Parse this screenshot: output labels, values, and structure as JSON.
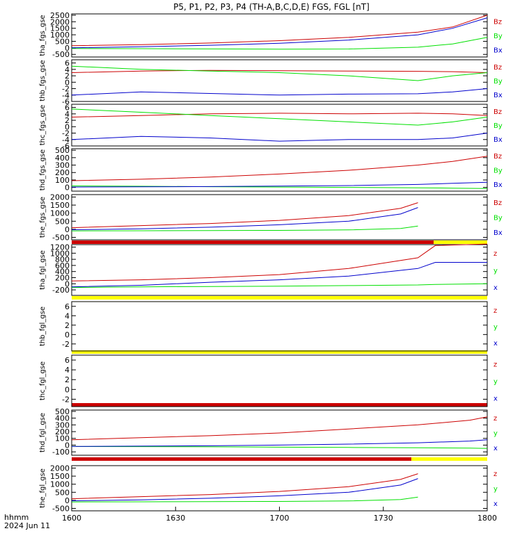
{
  "title": "P5, P1, P2, P3, P4 (TH-A,B,C,D,E) FGS, FGL [nT]",
  "colors": {
    "red": "#cc0000",
    "green": "#00e000",
    "blue": "#0000cc",
    "yellow": "#ffff00",
    "black": "#000000"
  },
  "x_axis": {
    "label_line1": "hhmm",
    "label_line2": "2024 Jun 11",
    "ticks": [
      "1600",
      "1630",
      "1700",
      "1730",
      "1800"
    ]
  },
  "chart_data": [
    {
      "type": "line",
      "ylabel": "tha_fgs_gse",
      "ylim": [
        -700,
        2600
      ],
      "yticks": [
        "2500",
        "2000",
        "1500",
        "1000",
        "500",
        "0",
        "-500"
      ],
      "legend": [
        "Bz",
        "By",
        "Bx"
      ],
      "x": [
        "16:00",
        "16:20",
        "16:40",
        "17:00",
        "17:20",
        "17:40",
        "17:50",
        "18:00"
      ],
      "series": [
        {
          "name": "Bz",
          "values": [
            170,
            250,
            370,
            550,
            800,
            1200,
            1600,
            2500
          ]
        },
        {
          "name": "By",
          "values": [
            -50,
            -60,
            -80,
            -100,
            -90,
            50,
            300,
            800
          ]
        },
        {
          "name": "Bx",
          "values": [
            0,
            80,
            200,
            350,
            600,
            1000,
            1500,
            2300
          ]
        }
      ]
    },
    {
      "type": "line",
      "ylabel": "thb_fgs_gse",
      "ylim": [
        -6,
        7
      ],
      "yticks": [
        "6",
        "4",
        "2",
        "0",
        "-2",
        "-4",
        "-6"
      ],
      "legend": [
        "Bz",
        "By",
        "Bx"
      ],
      "x": [
        "16:00",
        "16:20",
        "16:40",
        "17:00",
        "17:20",
        "17:40",
        "17:50",
        "18:00"
      ],
      "series": [
        {
          "name": "Bz",
          "values": [
            3,
            3.5,
            3.7,
            3.6,
            3.5,
            3.4,
            3.3,
            3.0
          ]
        },
        {
          "name": "By",
          "values": [
            5,
            4,
            3.5,
            3,
            2,
            0.5,
            2,
            3
          ]
        },
        {
          "name": "Bx",
          "values": [
            -4,
            -3,
            -3.5,
            -4,
            -3.7,
            -3.6,
            -3,
            -2
          ]
        }
      ]
    },
    {
      "type": "line",
      "ylabel": "thc_fgs_gse",
      "ylim": [
        -6,
        7
      ],
      "yticks": [
        "6",
        "4",
        "2",
        "0",
        "-2",
        "-4",
        "-6"
      ],
      "legend": [
        "Bz",
        "By",
        "Bx"
      ],
      "x": [
        "16:00",
        "16:20",
        "16:40",
        "17:00",
        "17:20",
        "17:40",
        "17:50",
        "18:00"
      ],
      "series": [
        {
          "name": "Bz",
          "values": [
            3,
            3.5,
            4,
            4.2,
            4.0,
            4.2,
            4.0,
            3.5
          ]
        },
        {
          "name": "By",
          "values": [
            5.5,
            4.5,
            3.5,
            2.5,
            1.5,
            0.5,
            1.5,
            3
          ]
        },
        {
          "name": "Bx",
          "values": [
            -4,
            -3,
            -3.5,
            -4.5,
            -4,
            -4,
            -3.5,
            -2
          ]
        }
      ]
    },
    {
      "type": "line",
      "ylabel": "thd_fgs_gse",
      "ylim": [
        -50,
        520
      ],
      "yticks": [
        "500",
        "400",
        "300",
        "200",
        "100",
        "0"
      ],
      "legend": [
        "Bz",
        "By",
        "Bx"
      ],
      "x": [
        "16:00",
        "16:20",
        "16:40",
        "17:00",
        "17:20",
        "17:40",
        "17:50",
        "18:00"
      ],
      "series": [
        {
          "name": "Bz",
          "values": [
            90,
            110,
            140,
            180,
            230,
            300,
            350,
            420
          ]
        },
        {
          "name": "By",
          "values": [
            20,
            15,
            10,
            5,
            0,
            -5,
            -10,
            -15
          ]
        },
        {
          "name": "Bx",
          "values": [
            5,
            8,
            12,
            18,
            25,
            40,
            55,
            70
          ]
        }
      ]
    },
    {
      "type": "line",
      "ylabel": "the_fgs_gse",
      "ylim": [
        -650,
        2150
      ],
      "yticks": [
        "2000",
        "1500",
        "1000",
        "500",
        "0",
        "-500"
      ],
      "legend": [
        "Bz",
        "By",
        "Bx"
      ],
      "x": [
        "16:00",
        "16:20",
        "16:40",
        "17:00",
        "17:20",
        "17:35",
        "17:40"
      ],
      "series": [
        {
          "name": "Bz",
          "values": [
            100,
            230,
            360,
            550,
            850,
            1300,
            1650
          ]
        },
        {
          "name": "By",
          "values": [
            -100,
            -90,
            -80,
            -70,
            -40,
            50,
            200
          ]
        },
        {
          "name": "Bx",
          "values": [
            -30,
            30,
            130,
            280,
            500,
            950,
            1350
          ]
        }
      ]
    },
    {
      "type": "line",
      "ylabel": "tha_fgl_gse",
      "ylim": [
        -380,
        1280
      ],
      "yticks": [
        "1200",
        "1000",
        "800",
        "600",
        "400",
        "200",
        "0",
        "-200"
      ],
      "legend": [
        "z",
        "y",
        "x"
      ],
      "x": [
        "16:00",
        "16:20",
        "16:40",
        "17:00",
        "17:20",
        "17:40",
        "17:45",
        "18:00"
      ],
      "series": [
        {
          "name": "z",
          "values": [
            90,
            130,
            200,
            300,
            500,
            850,
            1250,
            1300
          ]
        },
        {
          "name": "y",
          "values": [
            -120,
            -100,
            -90,
            -80,
            -60,
            -40,
            -20,
            0
          ]
        },
        {
          "name": "x",
          "values": [
            -100,
            -50,
            50,
            130,
            250,
            500,
            700,
            700
          ]
        }
      ]
    },
    {
      "type": "line",
      "ylabel": "thb_fgl_gse",
      "ylim": [
        -3.5,
        7
      ],
      "yticks": [
        "6",
        "4",
        "2",
        "0",
        "-2"
      ],
      "legend": [
        "z",
        "y",
        "x"
      ],
      "x": [],
      "series": []
    },
    {
      "type": "line",
      "ylabel": "thc_fgl_gse",
      "ylim": [
        -3.5,
        7
      ],
      "yticks": [
        "6",
        "4",
        "2",
        "0",
        "-2"
      ],
      "legend": [
        "z",
        "y",
        "x"
      ],
      "x": [],
      "series": []
    },
    {
      "type": "line",
      "ylabel": "thd_fgl_gse",
      "ylim": [
        -150,
        520
      ],
      "yticks": [
        "500",
        "400",
        "300",
        "200",
        "100",
        "0",
        "-100"
      ],
      "legend": [
        "z",
        "y",
        "x"
      ],
      "x": [
        "16:00",
        "16:20",
        "16:40",
        "17:00",
        "17:20",
        "17:40",
        "17:55",
        "18:00"
      ],
      "series": [
        {
          "name": "z",
          "values": [
            80,
            110,
            140,
            180,
            240,
            300,
            370,
            420
          ]
        },
        {
          "name": "y",
          "values": [
            -20,
            -22,
            -25,
            -30,
            -35,
            -40,
            -45,
            -50
          ]
        },
        {
          "name": "x",
          "values": [
            -20,
            -15,
            -10,
            0,
            15,
            35,
            60,
            80
          ]
        }
      ]
    },
    {
      "type": "line",
      "ylabel": "the_fgl_gse",
      "ylim": [
        -650,
        2150
      ],
      "yticks": [
        "2000",
        "1500",
        "1000",
        "500",
        "0",
        "-500"
      ],
      "legend": [
        "z",
        "y",
        "x"
      ],
      "x": [
        "16:00",
        "16:20",
        "16:40",
        "17:00",
        "17:20",
        "17:35",
        "17:40"
      ],
      "series": [
        {
          "name": "z",
          "values": [
            100,
            230,
            360,
            550,
            850,
            1300,
            1650
          ]
        },
        {
          "name": "y",
          "values": [
            -100,
            -90,
            -80,
            -70,
            -40,
            50,
            200
          ]
        },
        {
          "name": "x",
          "values": [
            -30,
            30,
            130,
            280,
            500,
            950,
            1350
          ]
        }
      ]
    }
  ]
}
